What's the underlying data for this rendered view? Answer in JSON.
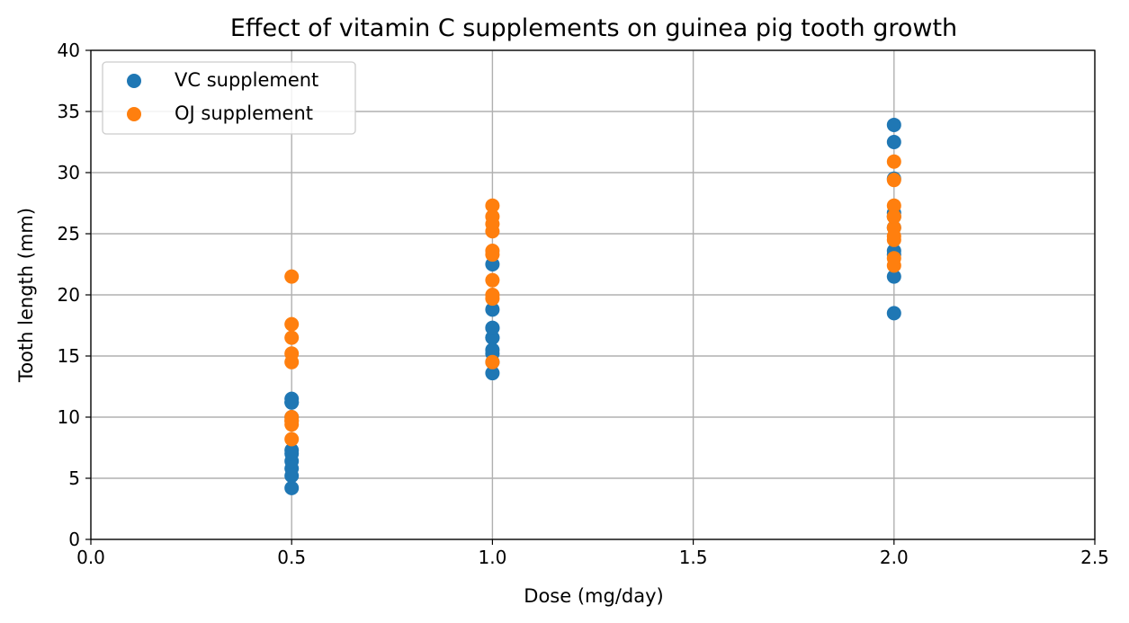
{
  "chart_data": {
    "type": "scatter",
    "title": "Effect of vitamin C supplements on guinea pig tooth growth",
    "xlabel": "Dose (mg/day)",
    "ylabel": "Tooth length (mm)",
    "xlim": [
      0.0,
      2.5
    ],
    "ylim": [
      0,
      40
    ],
    "xticks": [
      "0.0",
      "0.5",
      "1.0",
      "1.5",
      "2.0",
      "2.5"
    ],
    "yticks": [
      "0",
      "5",
      "10",
      "15",
      "20",
      "25",
      "30",
      "35",
      "40"
    ],
    "grid": true,
    "legend_position": "top-left",
    "series": [
      {
        "name": "VC supplement",
        "color": "#1f77b4",
        "x": [
          0.5,
          0.5,
          0.5,
          0.5,
          0.5,
          0.5,
          0.5,
          0.5,
          0.5,
          0.5,
          1.0,
          1.0,
          1.0,
          1.0,
          1.0,
          1.0,
          1.0,
          1.0,
          1.0,
          1.0,
          2.0,
          2.0,
          2.0,
          2.0,
          2.0,
          2.0,
          2.0,
          2.0,
          2.0,
          2.0
        ],
        "y": [
          4.2,
          11.5,
          7.3,
          5.8,
          6.4,
          10.0,
          11.2,
          11.2,
          5.2,
          7.0,
          16.5,
          16.5,
          15.2,
          17.3,
          22.5,
          17.3,
          13.6,
          14.5,
          18.8,
          15.5,
          23.6,
          18.5,
          33.9,
          25.5,
          26.4,
          32.5,
          26.7,
          21.5,
          23.3,
          29.5
        ]
      },
      {
        "name": "OJ supplement",
        "color": "#ff7f0e",
        "x": [
          0.5,
          0.5,
          0.5,
          0.5,
          0.5,
          0.5,
          0.5,
          0.5,
          0.5,
          0.5,
          1.0,
          1.0,
          1.0,
          1.0,
          1.0,
          1.0,
          1.0,
          1.0,
          1.0,
          1.0,
          2.0,
          2.0,
          2.0,
          2.0,
          2.0,
          2.0,
          2.0,
          2.0,
          2.0,
          2.0
        ],
        "y": [
          15.2,
          21.5,
          17.6,
          9.7,
          14.5,
          10.0,
          8.2,
          9.4,
          16.5,
          9.7,
          19.7,
          23.3,
          23.6,
          26.4,
          20.0,
          25.2,
          25.8,
          21.2,
          14.5,
          27.3,
          25.5,
          26.4,
          22.4,
          24.5,
          24.8,
          30.9,
          26.4,
          27.3,
          29.4,
          23.0
        ]
      }
    ]
  }
}
